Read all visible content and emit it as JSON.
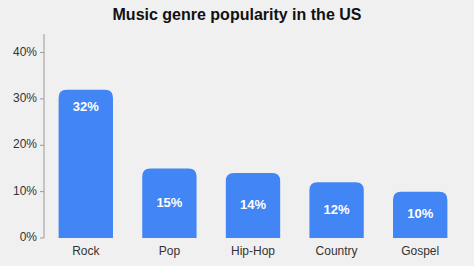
{
  "chart_data": {
    "type": "bar",
    "title": "Music genre popularity in the US",
    "categories": [
      "Rock",
      "Pop",
      "Hip-Hop",
      "Country",
      "Gospel"
    ],
    "values": [
      32,
      15,
      14,
      12,
      10
    ],
    "value_labels": [
      "32%",
      "15%",
      "14%",
      "12%",
      "10%"
    ],
    "data_labels": true,
    "color": "#4285f4",
    "ylim": [
      0,
      44
    ],
    "yticks": [
      {
        "value": 0,
        "label": "0%"
      },
      {
        "value": 10,
        "label": "10%"
      },
      {
        "value": 20,
        "label": "20%"
      },
      {
        "value": 30,
        "label": "30%"
      },
      {
        "value": 40,
        "label": "40%"
      }
    ],
    "grid": false
  }
}
